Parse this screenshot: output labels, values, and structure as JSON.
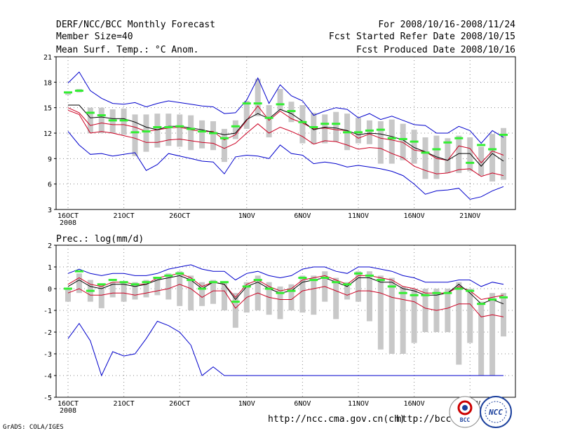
{
  "header": {
    "title": "DERF/NCC/BCC Monthly Forecast",
    "member_size": "Member Size=40",
    "variable": "Mean Surf. Temp.: °C Anom.",
    "period": "For 2008/10/16-2008/11/24",
    "refer_date": "Fcst Started Refer Date 2008/10/15",
    "produced_date": "Fcst Produced Date 2008/10/16"
  },
  "footer": {
    "grads": "GrADS: COLA/IGES",
    "url_ncc": "http://ncc.cma.gov.cn(ch)",
    "url_bcc": "http://bcc.c",
    "logo_bcc": "BCC",
    "logo_ncc": "NCC"
  },
  "colors": {
    "max": "#0000cc",
    "min": "#0000cc",
    "mean": "#000000",
    "spread": "#cc0022",
    "box": "#c8c8c8",
    "mark": "#33ee33"
  },
  "chart_data": [
    {
      "type": "line",
      "title": "Mean Surf. Temp.: °C Anom.",
      "xlabel": "",
      "ylabel": "",
      "ylim": [
        3,
        21
      ],
      "yticks": [
        3,
        6,
        9,
        12,
        15,
        18,
        21
      ],
      "grid": true,
      "x_count": 40,
      "x_ticks": [
        {
          "i": 0,
          "label": "16OCT",
          "sub": "2008"
        },
        {
          "i": 5,
          "label": "21OCT"
        },
        {
          "i": 10,
          "label": "26OCT"
        },
        {
          "i": 16,
          "label": "1NOV"
        },
        {
          "i": 21,
          "label": "6NOV"
        },
        {
          "i": 26,
          "label": "11NOV"
        },
        {
          "i": 31,
          "label": "16NOV"
        },
        {
          "i": 36,
          "label": "21NOV"
        }
      ],
      "series": [
        {
          "name": "max",
          "values": [
            17.9,
            19.2,
            17.0,
            16.1,
            15.5,
            15.4,
            15.6,
            15.1,
            15.5,
            15.8,
            15.6,
            15.4,
            15.2,
            15.1,
            14.3,
            14.4,
            15.9,
            18.5,
            15.5,
            17.7,
            16.4,
            15.8,
            14.1,
            14.6,
            15.0,
            14.8,
            13.8,
            14.3,
            13.6,
            14.0,
            13.5,
            13.0,
            12.9,
            12.0,
            12.0,
            12.8,
            12.3,
            10.8,
            12.3,
            11.5
          ]
        },
        {
          "name": "upper",
          "values": [
            15.0,
            14.4,
            12.9,
            13.2,
            13.0,
            13.0,
            12.7,
            12.2,
            12.4,
            12.6,
            12.7,
            12.4,
            12.2,
            12.2,
            11.2,
            11.8,
            13.5,
            15.2,
            13.5,
            14.6,
            13.7,
            13.2,
            12.5,
            12.6,
            12.4,
            12.3,
            11.4,
            11.9,
            11.4,
            11.2,
            10.9,
            10.0,
            9.8,
            9.0,
            8.8,
            10.5,
            10.2,
            8.5,
            9.9,
            9.4
          ]
        },
        {
          "name": "mean",
          "values": [
            15.3,
            15.3,
            13.8,
            13.9,
            13.7,
            13.7,
            13.3,
            12.7,
            12.4,
            12.8,
            12.8,
            12.6,
            12.4,
            12.1,
            11.8,
            12.0,
            13.6,
            14.3,
            13.7,
            14.8,
            14.3,
            13.4,
            12.4,
            12.7,
            12.6,
            12.3,
            11.8,
            12.0,
            11.9,
            11.6,
            11.2,
            10.3,
            9.8,
            9.2,
            8.8,
            9.6,
            9.6,
            8.1,
            9.6,
            8.7
          ]
        },
        {
          "name": "lower",
          "values": [
            14.7,
            14.2,
            12.0,
            12.2,
            12.0,
            11.7,
            11.4,
            10.9,
            10.9,
            11.2,
            11.3,
            11.1,
            10.9,
            10.8,
            10.2,
            10.8,
            12.0,
            13.1,
            12.0,
            12.7,
            12.2,
            11.6,
            10.7,
            11.1,
            11.0,
            10.6,
            10.1,
            10.3,
            10.2,
            9.6,
            9.1,
            8.1,
            7.6,
            7.2,
            7.3,
            7.7,
            7.8,
            6.9,
            7.3,
            7.0
          ]
        },
        {
          "name": "min",
          "values": [
            12.2,
            10.6,
            9.5,
            9.6,
            9.3,
            9.5,
            9.7,
            7.6,
            8.3,
            9.6,
            9.3,
            9.0,
            8.7,
            8.6,
            7.2,
            9.2,
            9.4,
            9.3,
            9.0,
            10.6,
            9.6,
            9.4,
            8.4,
            8.6,
            8.4,
            8.0,
            8.2,
            8.0,
            7.8,
            7.5,
            7.0,
            6.0,
            4.8,
            5.2,
            5.3,
            5.5,
            4.2,
            4.5,
            5.2,
            5.7
          ]
        }
      ],
      "boxes": {
        "low": [
          16.5,
          16.8,
          12.0,
          12.0,
          12.0,
          11.8,
          9.3,
          9.8,
          10.3,
          10.5,
          10.4,
          10.0,
          10.2,
          10.0,
          8.6,
          11.3,
          12.5,
          14.0,
          11.5,
          14.7,
          13.3,
          10.8,
          10.7,
          10.8,
          11.0,
          10.0,
          10.8,
          10.7,
          8.4,
          8.4,
          8.8,
          8.4,
          6.6,
          6.6,
          7.3,
          7.3,
          7.5,
          7.0,
          6.3,
          6.5
        ],
        "high": [
          16.9,
          17.2,
          15.0,
          15.0,
          14.8,
          14.9,
          14.2,
          14.2,
          14.3,
          14.3,
          14.2,
          14.1,
          13.5,
          13.4,
          12.5,
          13.5,
          15.8,
          18.4,
          15.3,
          17.2,
          15.7,
          15.3,
          14.4,
          14.2,
          14.5,
          14.3,
          13.8,
          13.5,
          13.4,
          13.6,
          13.1,
          12.4,
          11.5,
          11.7,
          11.4,
          11.7,
          11.5,
          10.4,
          11.9,
          12.6
        ]
      },
      "marks": [
        16.8,
        17.0,
        14.4,
        14.1,
        13.5,
        13.5,
        12.1,
        12.2,
        12.7,
        12.7,
        12.8,
        12.5,
        12.2,
        12.0,
        11.4,
        12.8,
        15.5,
        15.5,
        13.8,
        15.4,
        14.6,
        13.3,
        12.7,
        13.1,
        13.1,
        12.1,
        12.1,
        12.3,
        12.4,
        11.4,
        11.3,
        11.0,
        9.7,
        10.1,
        10.9,
        11.4,
        8.5,
        10.6,
        10.1,
        11.8
      ]
    },
    {
      "type": "line",
      "title": "Prec.: log(mm/d)",
      "xlabel": "",
      "ylabel": "",
      "ylim": [
        -5,
        2
      ],
      "yticks": [
        -5,
        -4,
        -3,
        -2,
        -1,
        0,
        1,
        2
      ],
      "grid": true,
      "x_count": 40,
      "x_ticks": [
        {
          "i": 0,
          "label": "16OCT",
          "sub": "2008"
        },
        {
          "i": 5,
          "label": "21OCT"
        },
        {
          "i": 10,
          "label": "26OCT"
        },
        {
          "i": 16,
          "label": "1NOV"
        },
        {
          "i": 21,
          "label": "6NOV"
        },
        {
          "i": 26,
          "label": "11NOV"
        },
        {
          "i": 31,
          "label": "16NOV"
        },
        {
          "i": 36,
          "label": "21NOV"
        }
      ],
      "series": [
        {
          "name": "max",
          "values": [
            0.7,
            0.9,
            0.7,
            0.6,
            0.7,
            0.7,
            0.6,
            0.6,
            0.7,
            0.9,
            1.0,
            1.1,
            0.9,
            0.8,
            0.8,
            0.4,
            0.7,
            0.8,
            0.6,
            0.5,
            0.6,
            0.9,
            1.0,
            1.0,
            0.8,
            0.7,
            1.0,
            1.0,
            0.9,
            0.8,
            0.6,
            0.5,
            0.3,
            0.3,
            0.3,
            0.4,
            0.4,
            0.1,
            0.3,
            0.2
          ]
        },
        {
          "name": "upper",
          "values": [
            0.2,
            0.5,
            0.2,
            0.1,
            0.3,
            0.3,
            0.2,
            0.2,
            0.5,
            0.6,
            0.7,
            0.5,
            0.1,
            0.3,
            0.2,
            -0.4,
            0.2,
            0.4,
            0.1,
            -0.1,
            0.0,
            0.4,
            0.5,
            0.6,
            0.4,
            0.2,
            0.6,
            0.6,
            0.5,
            0.4,
            0.1,
            0.0,
            -0.2,
            -0.2,
            -0.2,
            0.1,
            -0.1,
            -0.5,
            -0.4,
            -0.3
          ]
        },
        {
          "name": "mean",
          "values": [
            0.1,
            0.4,
            0.1,
            0.0,
            0.2,
            0.2,
            0.1,
            0.2,
            0.4,
            0.5,
            0.6,
            0.4,
            0.0,
            0.3,
            0.2,
            -0.5,
            0.1,
            0.3,
            0.0,
            -0.2,
            -0.1,
            0.3,
            0.4,
            0.5,
            0.3,
            0.1,
            0.5,
            0.5,
            0.3,
            0.3,
            0.0,
            -0.1,
            -0.3,
            -0.3,
            -0.2,
            0.2,
            -0.2,
            -0.7,
            -0.5,
            -0.7
          ]
        },
        {
          "name": "lower",
          "values": [
            -0.2,
            0.0,
            -0.3,
            -0.3,
            -0.2,
            -0.2,
            -0.3,
            -0.2,
            -0.1,
            0.0,
            0.2,
            0.0,
            -0.4,
            -0.1,
            -0.1,
            -0.9,
            -0.4,
            -0.2,
            -0.4,
            -0.5,
            -0.5,
            -0.1,
            0.0,
            0.1,
            -0.1,
            -0.3,
            -0.1,
            -0.1,
            -0.2,
            -0.4,
            -0.5,
            -0.6,
            -0.9,
            -1.0,
            -0.9,
            -0.7,
            -0.7,
            -1.3,
            -1.2,
            -1.3
          ]
        },
        {
          "name": "min",
          "values": [
            -2.3,
            -1.6,
            -2.4,
            -4.0,
            -2.9,
            -3.1,
            -3.0,
            -2.3,
            -1.5,
            -1.7,
            -2.0,
            -2.6,
            -4.0,
            -3.6,
            -4.0,
            -4.0,
            -4.0,
            -4.0,
            -4.0,
            -4.0,
            -4.0,
            -4.0,
            -4.0,
            -4.0,
            -4.0,
            -4.0,
            -4.0,
            -4.0,
            -4.0,
            -4.0,
            -4.0,
            -4.0,
            -4.0,
            -4.0,
            -4.0,
            -4.0,
            -4.0,
            -4.0,
            -4.0,
            -4.0
          ]
        }
      ],
      "boxes": {
        "low": [
          -0.6,
          -0.2,
          -0.6,
          -0.9,
          -0.4,
          -0.6,
          -0.5,
          -0.4,
          -0.3,
          -0.5,
          -0.8,
          -1.0,
          -0.8,
          -0.7,
          -1.0,
          -1.8,
          -1.1,
          -1.0,
          -1.2,
          -1.4,
          -1.0,
          -1.1,
          -1.2,
          -0.6,
          -1.4,
          -0.5,
          -0.6,
          -1.5,
          -2.8,
          -3.0,
          -3.0,
          -2.5,
          -2.0,
          -2.0,
          -2.0,
          -3.5,
          -2.5,
          -4.0,
          -4.0,
          -2.2
        ],
        "high": [
          0.0,
          0.7,
          0.4,
          0.2,
          0.3,
          0.3,
          0.3,
          0.4,
          0.5,
          0.7,
          0.8,
          0.6,
          0.3,
          0.4,
          0.3,
          -0.2,
          0.3,
          0.6,
          0.3,
          0.1,
          0.2,
          0.6,
          0.6,
          0.8,
          0.5,
          0.3,
          0.8,
          0.8,
          0.6,
          0.5,
          0.1,
          0.0,
          0.0,
          0.0,
          0.0,
          0.3,
          0.0,
          -0.6,
          -0.2,
          -0.2
        ]
      },
      "marks": [
        0.0,
        0.8,
        -0.1,
        0.2,
        0.4,
        0.3,
        0.2,
        0.3,
        0.5,
        0.6,
        0.7,
        0.4,
        0.0,
        0.3,
        0.3,
        -0.6,
        0.1,
        0.4,
        0.0,
        -0.2,
        -0.1,
        0.5,
        0.4,
        0.5,
        0.3,
        0.2,
        0.7,
        0.6,
        0.4,
        0.1,
        -0.2,
        -0.3,
        -0.3,
        -0.2,
        -0.2,
        0.0,
        -0.1,
        -0.7,
        -0.5,
        -0.4
      ]
    }
  ]
}
